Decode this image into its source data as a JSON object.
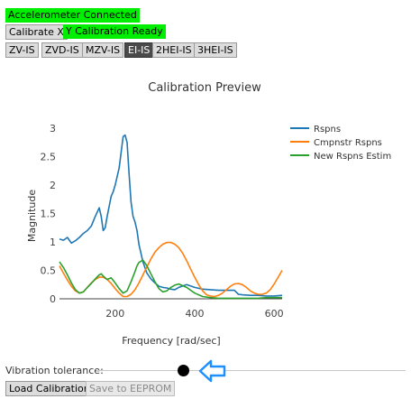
{
  "status": {
    "accelerometer": "Accelerometer Connected",
    "y_calibration": "Y Calibration Ready"
  },
  "buttons": {
    "calibrate_x": "Calibrate X",
    "load_calibration": "Load Calibration",
    "save_eeprom": "Save to EEPROM"
  },
  "shaper_tabs": [
    {
      "label": "ZV-IS",
      "active": false
    },
    {
      "label": "ZVD-IS",
      "active": false
    },
    {
      "label": "MZV-IS",
      "active": false
    },
    {
      "label": "EI-IS",
      "active": true
    },
    {
      "label": "2HEI-IS",
      "active": false
    },
    {
      "label": "3HEI-IS",
      "active": false
    }
  ],
  "vibration_tolerance": {
    "label": "Vibration tolerance:",
    "value": 0.28
  },
  "colors": {
    "status_green": "#00ee00",
    "rspns": "#1f77b4",
    "cmpnstr": "#ff7f0e",
    "new_rspns": "#2ca02c",
    "arrow": "#1e90ff"
  },
  "chart_data": {
    "type": "line",
    "title": "Calibration Preview",
    "xlabel": "Frequency [rad/sec]",
    "ylabel": "Magnitude",
    "xlim": [
      60,
      620
    ],
    "ylim": [
      0,
      3
    ],
    "xticks": [
      200,
      400,
      600
    ],
    "yticks": [
      0,
      0.5,
      1,
      1.5,
      2,
      2.5,
      3
    ],
    "grid": false,
    "legend": "top-right",
    "series": [
      {
        "name": "Rspns",
        "color": "#1f77b4",
        "x": [
          60,
          70,
          80,
          90,
          100,
          110,
          120,
          130,
          140,
          150,
          160,
          165,
          170,
          175,
          180,
          190,
          195,
          200,
          210,
          220,
          225,
          230,
          235,
          240,
          245,
          250,
          255,
          260,
          270,
          280,
          290,
          300,
          310,
          320,
          330,
          340,
          350,
          360,
          380,
          400,
          420,
          440,
          460,
          480,
          500,
          510,
          520,
          540,
          560,
          580,
          600,
          620
        ],
        "y": [
          1.05,
          1.03,
          1.08,
          0.98,
          1.02,
          1.08,
          1.15,
          1.2,
          1.28,
          1.45,
          1.6,
          1.45,
          1.2,
          1.25,
          1.45,
          1.8,
          1.88,
          2.0,
          2.3,
          2.85,
          2.88,
          2.75,
          2.2,
          1.7,
          1.45,
          1.35,
          1.2,
          0.95,
          0.65,
          0.45,
          0.35,
          0.28,
          0.22,
          0.2,
          0.19,
          0.17,
          0.16,
          0.2,
          0.25,
          0.2,
          0.17,
          0.16,
          0.15,
          0.15,
          0.15,
          0.08,
          0.07,
          0.06,
          0.06,
          0.05,
          0.05,
          0.06
        ]
      },
      {
        "name": "Cmpnstr Rspns",
        "color": "#ff7f0e",
        "x": [
          60,
          70,
          80,
          90,
          100,
          110,
          120,
          130,
          140,
          150,
          160,
          170,
          180,
          190,
          200,
          210,
          220,
          230,
          240,
          250,
          260,
          270,
          280,
          290,
          300,
          310,
          320,
          330,
          340,
          350,
          360,
          370,
          380,
          390,
          400,
          410,
          420,
          430,
          440,
          450,
          460,
          470,
          480,
          490,
          500,
          510,
          520,
          530,
          540,
          550,
          560,
          570,
          580,
          590,
          600,
          610,
          620
        ],
        "y": [
          0.58,
          0.45,
          0.33,
          0.22,
          0.14,
          0.1,
          0.12,
          0.2,
          0.28,
          0.34,
          0.38,
          0.38,
          0.34,
          0.27,
          0.18,
          0.1,
          0.04,
          0.04,
          0.08,
          0.16,
          0.28,
          0.42,
          0.56,
          0.7,
          0.82,
          0.9,
          0.96,
          0.99,
          0.99,
          0.96,
          0.9,
          0.8,
          0.67,
          0.52,
          0.38,
          0.25,
          0.14,
          0.07,
          0.05,
          0.04,
          0.06,
          0.1,
          0.16,
          0.22,
          0.26,
          0.27,
          0.25,
          0.2,
          0.14,
          0.1,
          0.08,
          0.08,
          0.1,
          0.16,
          0.26,
          0.38,
          0.5
        ]
      },
      {
        "name": "New Rspns Estim",
        "color": "#2ca02c",
        "x": [
          60,
          70,
          80,
          90,
          100,
          110,
          120,
          130,
          140,
          150,
          160,
          165,
          170,
          180,
          190,
          200,
          210,
          220,
          230,
          240,
          250,
          255,
          260,
          270,
          280,
          290,
          300,
          310,
          320,
          330,
          340,
          350,
          360,
          380,
          400,
          420,
          440,
          460,
          480,
          500,
          520,
          540,
          560,
          580,
          600,
          620
        ],
        "y": [
          0.65,
          0.55,
          0.42,
          0.28,
          0.16,
          0.1,
          0.12,
          0.2,
          0.27,
          0.35,
          0.42,
          0.44,
          0.4,
          0.34,
          0.37,
          0.28,
          0.18,
          0.1,
          0.14,
          0.3,
          0.48,
          0.58,
          0.64,
          0.68,
          0.58,
          0.44,
          0.3,
          0.18,
          0.12,
          0.14,
          0.2,
          0.24,
          0.26,
          0.2,
          0.1,
          0.04,
          0.02,
          0.01,
          0.01,
          0.01,
          0.01,
          0.01,
          0.01,
          0.02,
          0.02,
          0.02
        ]
      }
    ]
  }
}
